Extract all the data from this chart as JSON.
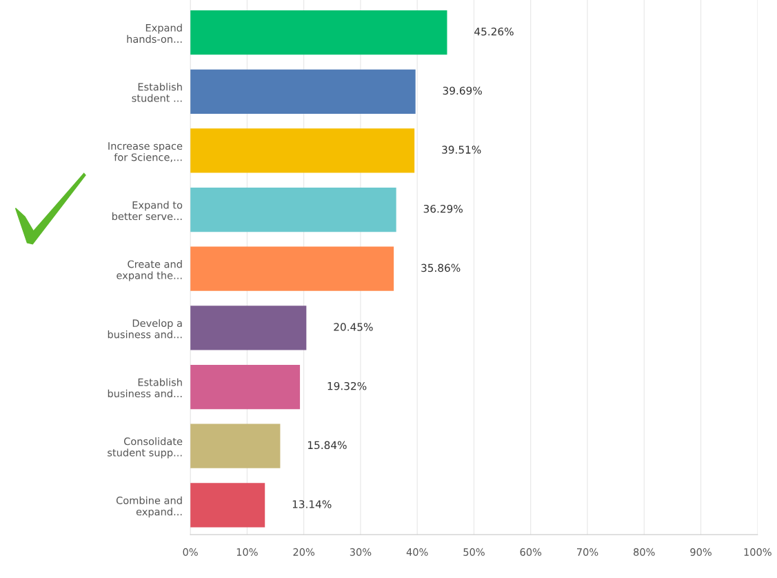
{
  "chart_data": {
    "type": "bar",
    "orientation": "horizontal",
    "categories": [
      "Expand\nhands-on...",
      "Establish\nstudent ...",
      "Increase space\nfor Science,...",
      "Expand to\nbetter serve...",
      "Create and\nexpand the...",
      "Develop a\nbusiness and...",
      "Establish\nbusiness and...",
      "Consolidate\nstudent supp...",
      "Combine and\nexpand..."
    ],
    "values": [
      45.26,
      39.69,
      39.51,
      36.29,
      35.86,
      20.45,
      19.32,
      15.84,
      13.14
    ],
    "colors": [
      "#00bf6f",
      "#507cb6",
      "#f5be00",
      "#6bc8cd",
      "#ff8b4f",
      "#7d5e90",
      "#d25f90",
      "#c7b879",
      "#e05260"
    ],
    "value_labels": [
      "45.26%",
      "39.69%",
      "39.51%",
      "36.29%",
      "35.86%",
      "20.45%",
      "19.32%",
      "15.84%",
      "13.14%"
    ],
    "xlim": [
      0,
      100
    ],
    "xticks": [
      {
        "value": 0,
        "label": "0%"
      },
      {
        "value": 10,
        "label": "10%"
      },
      {
        "value": 20,
        "label": "20%"
      },
      {
        "value": 30,
        "label": "30%"
      },
      {
        "value": 40,
        "label": "40%"
      },
      {
        "value": 50,
        "label": "50%"
      },
      {
        "value": 60,
        "label": "60%"
      },
      {
        "value": 70,
        "label": "70%"
      },
      {
        "value": 80,
        "label": "80%"
      },
      {
        "value": 90,
        "label": "90%"
      },
      {
        "value": 100,
        "label": "100%"
      }
    ],
    "grid": "x"
  }
}
